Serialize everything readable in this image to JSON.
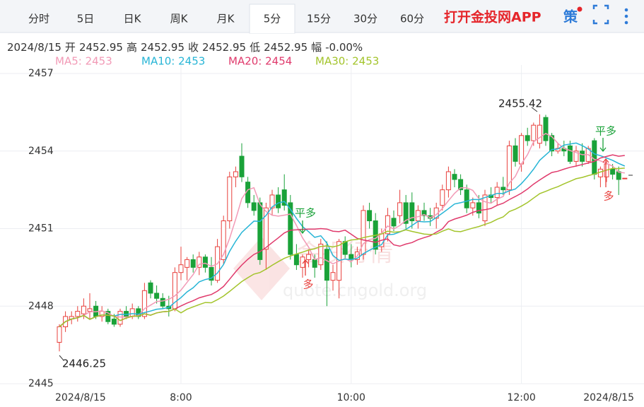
{
  "tabs": [
    "分时",
    "5日",
    "日K",
    "周K",
    "月K",
    "5分",
    "15分",
    "30分",
    "60分"
  ],
  "selected_tab": 5,
  "brand": "打开金投网APP",
  "strategy_icon": "策",
  "info": [
    "2024/8/15",
    "开",
    "2452.95",
    "高",
    "2452.95",
    "收",
    "2452.95",
    "低",
    "2452.95",
    "幅",
    "-0.00%"
  ],
  "watermark": [
    "金投行情",
    "quote.cngold.org"
  ],
  "chart_data": {
    "type": "candlestick",
    "categories": [
      "2024/8/15",
      null,
      null,
      null,
      null,
      null,
      null,
      null,
      null,
      null,
      null,
      null,
      null,
      null,
      null,
      null,
      null,
      null,
      null,
      null,
      "8:00",
      null,
      null,
      null,
      null,
      null,
      null,
      null,
      null,
      null,
      null,
      null,
      null,
      null,
      null,
      null,
      null,
      null,
      null,
      null,
      null,
      null,
      null,
      null,
      null,
      null,
      null,
      null,
      "10:00",
      null,
      null,
      null,
      null,
      null,
      null,
      null,
      null,
      null,
      null,
      null,
      null,
      null,
      null,
      null,
      null,
      null,
      null,
      null,
      null,
      null,
      null,
      null,
      null,
      null,
      null,
      null,
      "12:00",
      null,
      null,
      null,
      null,
      null,
      null,
      null,
      null,
      null,
      null,
      null,
      null,
      null,
      null,
      null,
      null,
      "2024/8/15"
    ],
    "ohlc": [
      [
        2446.6,
        2447.3,
        2446.25,
        2447.2
      ],
      [
        2447.2,
        2447.8,
        2447.0,
        2447.6
      ],
      [
        2447.5,
        2447.8,
        2447.3,
        2447.6
      ],
      [
        2447.6,
        2448.0,
        2447.4,
        2447.8
      ],
      [
        2447.7,
        2448.3,
        2447.5,
        2448.0
      ],
      [
        2447.8,
        2448.5,
        2447.5,
        2447.9
      ],
      [
        2448.0,
        2448.2,
        2447.5,
        2447.6
      ],
      [
        2447.6,
        2448.0,
        2447.4,
        2447.8
      ],
      [
        2447.8,
        2447.9,
        2447.3,
        2447.4
      ],
      [
        2447.5,
        2447.7,
        2447.2,
        2447.3
      ],
      [
        2447.3,
        2447.9,
        2447.2,
        2447.8
      ],
      [
        2447.8,
        2448.0,
        2447.5,
        2447.6
      ],
      [
        2447.6,
        2448.1,
        2447.5,
        2447.9
      ],
      [
        2447.9,
        2448.0,
        2447.5,
        2447.6
      ],
      [
        2447.6,
        2448.9,
        2447.5,
        2448.6
      ],
      [
        2448.9,
        2449.0,
        2448.3,
        2448.5
      ],
      [
        2448.5,
        2448.8,
        2448.1,
        2448.3
      ],
      [
        2448.3,
        2448.5,
        2447.9,
        2448.0
      ],
      [
        2448.0,
        2448.4,
        2447.6,
        2447.9
      ],
      [
        2447.9,
        2449.5,
        2447.8,
        2449.3
      ],
      [
        2449.3,
        2450.3,
        2449.0,
        2449.6
      ],
      [
        2449.5,
        2449.9,
        2449.0,
        2449.8
      ],
      [
        2449.8,
        2450.0,
        2449.3,
        2449.5
      ],
      [
        2449.5,
        2450.1,
        2449.2,
        2449.9
      ],
      [
        2449.9,
        2450.0,
        2449.3,
        2449.5
      ],
      [
        2449.5,
        2449.9,
        2448.8,
        2449.0
      ],
      [
        2449.0,
        2450.6,
        2448.9,
        2450.3
      ],
      [
        2449.8,
        2451.5,
        2449.6,
        2451.3
      ],
      [
        2451.3,
        2453.2,
        2451.0,
        2453.0
      ],
      [
        2453.0,
        2453.4,
        2452.6,
        2453.2
      ],
      [
        2453.8,
        2454.3,
        2452.8,
        2453.0
      ],
      [
        2452.8,
        2453.0,
        2451.8,
        2452.0
      ],
      [
        2452.0,
        2452.3,
        2451.5,
        2451.7
      ],
      [
        2452.0,
        2452.2,
        2449.6,
        2449.8
      ],
      [
        2450.2,
        2452.0,
        2449.4,
        2451.8
      ],
      [
        2451.8,
        2452.5,
        2451.5,
        2452.3
      ],
      [
        2452.3,
        2452.6,
        2451.6,
        2451.8
      ],
      [
        2452.5,
        2453.1,
        2451.7,
        2451.9
      ],
      [
        2452.0,
        2452.3,
        2449.8,
        2450.0
      ],
      [
        2450.0,
        2450.4,
        2449.4,
        2449.6
      ],
      [
        2449.5,
        2450.0,
        2449.1,
        2449.9
      ],
      [
        2449.8,
        2450.2,
        2449.5,
        2450.0
      ],
      [
        2449.8,
        2450.0,
        2449.1,
        2449.5
      ],
      [
        2449.6,
        2450.6,
        2449.4,
        2450.4
      ],
      [
        2450.2,
        2450.5,
        2448.0,
        2449.0
      ],
      [
        2449.0,
        2449.6,
        2448.6,
        2449.3
      ],
      [
        2449.0,
        2450.6,
        2448.3,
        2450.5
      ],
      [
        2450.5,
        2450.7,
        2449.8,
        2450.0
      ],
      [
        2450.0,
        2450.4,
        2449.5,
        2449.8
      ],
      [
        2449.8,
        2450.3,
        2449.6,
        2450.1
      ],
      [
        2450.0,
        2451.9,
        2449.8,
        2451.7
      ],
      [
        2451.7,
        2452.0,
        2451.0,
        2451.3
      ],
      [
        2451.3,
        2451.6,
        2450.0,
        2450.2
      ],
      [
        2450.3,
        2451.0,
        2450.1,
        2450.8
      ],
      [
        2450.8,
        2451.8,
        2450.5,
        2451.5
      ],
      [
        2451.4,
        2451.7,
        2450.9,
        2451.1
      ],
      [
        2451.5,
        2452.5,
        2451.2,
        2452.0
      ],
      [
        2452.0,
        2452.3,
        2451.0,
        2451.2
      ],
      [
        2452.0,
        2452.4,
        2451.0,
        2451.3
      ],
      [
        2451.3,
        2451.9,
        2451.0,
        2451.7
      ],
      [
        2451.7,
        2452.0,
        2451.3,
        2451.5
      ],
      [
        2451.5,
        2451.8,
        2451.1,
        2451.4
      ],
      [
        2451.4,
        2452.0,
        2451.0,
        2451.8
      ],
      [
        2451.9,
        2452.7,
        2451.7,
        2452.5
      ],
      [
        2452.5,
        2453.4,
        2452.2,
        2453.2
      ],
      [
        2453.1,
        2453.3,
        2452.6,
        2452.9
      ],
      [
        2452.9,
        2453.1,
        2452.3,
        2452.5
      ],
      [
        2452.5,
        2452.7,
        2451.6,
        2451.8
      ],
      [
        2451.8,
        2452.2,
        2451.5,
        2452.0
      ],
      [
        2452.0,
        2452.3,
        2451.4,
        2451.6
      ],
      [
        2451.3,
        2452.5,
        2451.1,
        2452.3
      ],
      [
        2452.3,
        2452.6,
        2452.0,
        2452.2
      ],
      [
        2452.2,
        2452.8,
        2451.9,
        2452.6
      ],
      [
        2452.6,
        2453.0,
        2452.3,
        2452.5
      ],
      [
        2452.5,
        2454.4,
        2452.3,
        2454.2
      ],
      [
        2454.2,
        2454.5,
        2453.4,
        2453.6
      ],
      [
        2453.5,
        2454.7,
        2453.2,
        2454.6
      ],
      [
        2454.6,
        2454.9,
        2454.2,
        2454.4
      ],
      [
        2454.4,
        2455.1,
        2454.2,
        2455.0
      ],
      [
        2454.3,
        2455.42,
        2454.1,
        2455.0
      ],
      [
        2455.3,
        2455.4,
        2454.2,
        2454.4
      ],
      [
        2454.6,
        2454.7,
        2453.8,
        2454.0
      ],
      [
        2454.0,
        2454.3,
        2453.9,
        2454.1
      ],
      [
        2454.1,
        2454.4,
        2453.8,
        2454.0
      ],
      [
        2454.2,
        2454.4,
        2453.5,
        2453.6
      ],
      [
        2453.6,
        2454.2,
        2453.4,
        2454.0
      ],
      [
        2454.0,
        2454.3,
        2453.4,
        2453.6
      ],
      [
        2453.6,
        2454.2,
        2453.5,
        2454.1
      ],
      [
        2454.4,
        2454.5,
        2452.9,
        2453.1
      ],
      [
        2453.0,
        2453.4,
        2452.6,
        2453.3
      ],
      [
        2453.0,
        2453.6,
        2452.8,
        2453.5
      ],
      [
        2453.3,
        2453.5,
        2452.9,
        2453.1
      ],
      [
        2453.2,
        2453.4,
        2452.3,
        2452.9
      ],
      [
        2452.95,
        2452.95,
        2452.95,
        2452.95
      ]
    ],
    "up_color": "#e8403c",
    "down_color": "#1aa239",
    "series": [
      {
        "name": "MA5: 2453",
        "color": "#f29ab6",
        "values": [
          2447.2,
          2447.4,
          2447.5,
          2447.55,
          2447.64,
          2447.78,
          2447.78,
          2447.82,
          2447.74,
          2447.6,
          2447.58,
          2447.58,
          2447.6,
          2447.64,
          2447.9,
          2448.04,
          2448.18,
          2448.2,
          2448.26,
          2448.4,
          2448.62,
          2448.92,
          2449.22,
          2449.62,
          2449.66,
          2449.54,
          2449.64,
          2450.0,
          2450.62,
          2451.36,
          2452.16,
          2452.5,
          2452.58,
          2451.94,
          2451.66,
          2451.52,
          2451.48,
          2451.52,
          2451.56,
          2451.12,
          2450.64,
          2450.28,
          2449.8,
          2449.88,
          2449.76,
          2449.64,
          2449.74,
          2449.84,
          2449.72,
          2449.94,
          2450.42,
          2450.58,
          2450.62,
          2450.82,
          2451.1,
          2450.98,
          2451.12,
          2451.32,
          2451.42,
          2451.46,
          2451.54,
          2451.42,
          2451.54,
          2451.78,
          2452.08,
          2452.36,
          2452.58,
          2452.58,
          2452.48,
          2452.16,
          2452.04,
          2451.98,
          2452.14,
          2452.24,
          2452.76,
          2453.02,
          2453.5,
          2453.86,
          2454.36,
          2454.52,
          2454.68,
          2454.56,
          2454.3,
          2454.1,
          2454.02,
          2453.94,
          2453.86,
          2453.86,
          2453.68,
          2453.62,
          2453.52,
          2453.42,
          2453.18,
          2453.15
        ]
      },
      {
        "name": "MA10: 2453",
        "color": "#27b5d6",
        "values": [
          2447.2,
          2447.4,
          2447.5,
          2447.55,
          2447.64,
          2447.49,
          2447.59,
          2447.66,
          2447.65,
          2447.62,
          2447.68,
          2447.68,
          2447.71,
          2447.69,
          2447.75,
          2447.81,
          2447.88,
          2447.9,
          2447.95,
          2448.15,
          2448.33,
          2448.55,
          2448.71,
          2448.94,
          2449.03,
          2449.08,
          2449.28,
          2449.61,
          2450.12,
          2450.51,
          2450.85,
          2451.07,
          2451.29,
          2451.28,
          2451.51,
          2451.84,
          2451.99,
          2452.05,
          2451.75,
          2451.39,
          2451.08,
          2450.88,
          2450.66,
          2450.72,
          2450.44,
          2449.96,
          2449.77,
          2449.82,
          2449.8,
          2449.85,
          2450.03,
          2450.16,
          2450.28,
          2450.38,
          2450.76,
          2450.78,
          2450.87,
          2450.97,
          2451.12,
          2451.28,
          2451.26,
          2451.27,
          2451.43,
          2451.6,
          2451.77,
          2451.95,
          2452.0,
          2452.06,
          2452.13,
          2452.12,
          2452.2,
          2452.28,
          2452.36,
          2452.36,
          2452.46,
          2452.53,
          2452.74,
          2453.0,
          2453.3,
          2453.64,
          2453.85,
          2454.06,
          2454.08,
          2454.23,
          2454.27,
          2454.31,
          2454.21,
          2454.08,
          2453.89,
          2453.82,
          2453.73,
          2453.64,
          2453.52,
          2453.42
        ]
      },
      {
        "name": "MA20: 2454",
        "color": "#e03a6c",
        "values": [
          2447.2,
          2447.4,
          2447.5,
          2447.55,
          2447.64,
          2447.49,
          2447.59,
          2447.66,
          2447.65,
          2447.62,
          2447.44,
          2447.54,
          2447.61,
          2447.62,
          2447.7,
          2447.65,
          2447.74,
          2447.78,
          2447.8,
          2447.89,
          2448.01,
          2448.12,
          2448.21,
          2448.32,
          2448.39,
          2448.45,
          2448.58,
          2448.76,
          2449.04,
          2449.33,
          2449.59,
          2449.81,
          2450.0,
          2450.11,
          2450.27,
          2450.46,
          2450.64,
          2450.83,
          2450.94,
          2450.95,
          2450.97,
          2450.98,
          2450.98,
          2451.0,
          2450.98,
          2450.9,
          2450.88,
          2450.94,
          2450.78,
          2450.62,
          2450.56,
          2450.52,
          2450.47,
          2450.55,
          2450.6,
          2450.37,
          2450.32,
          2450.4,
          2450.46,
          2450.57,
          2450.65,
          2450.72,
          2450.86,
          2450.99,
          2451.27,
          2451.37,
          2451.44,
          2451.52,
          2451.63,
          2451.7,
          2451.73,
          2451.78,
          2451.9,
          2451.98,
          2452.12,
          2452.24,
          2452.37,
          2452.53,
          2452.72,
          2452.88,
          2453.03,
          2453.17,
          2453.22,
          2453.3,
          2453.37,
          2453.42,
          2453.48,
          2453.54,
          2453.6,
          2453.73,
          2453.79,
          2453.85,
          2453.8,
          2453.83
        ]
      },
      {
        "name": "MA30: 2453",
        "color": "#a3c42b",
        "values": [
          2447.2,
          2447.4,
          2447.5,
          2447.55,
          2447.64,
          2447.49,
          2447.59,
          2447.66,
          2447.65,
          2447.62,
          2447.44,
          2447.54,
          2447.61,
          2447.62,
          2447.7,
          2447.65,
          2447.74,
          2447.78,
          2447.8,
          2447.89,
          2447.74,
          2447.88,
          2447.97,
          2448.06,
          2448.14,
          2448.13,
          2448.25,
          2448.39,
          2448.57,
          2448.76,
          2448.95,
          2449.1,
          2449.24,
          2449.3,
          2449.43,
          2449.58,
          2449.72,
          2449.85,
          2449.94,
          2450.02,
          2450.09,
          2450.17,
          2450.22,
          2450.31,
          2450.33,
          2450.29,
          2450.35,
          2450.49,
          2450.56,
          2450.58,
          2450.65,
          2450.7,
          2450.74,
          2450.79,
          2450.9,
          2450.86,
          2450.88,
          2450.95,
          2450.89,
          2450.84,
          2450.79,
          2450.77,
          2450.79,
          2450.9,
          2450.99,
          2450.9,
          2450.88,
          2450.95,
          2451.02,
          2451.08,
          2451.16,
          2451.24,
          2451.36,
          2451.45,
          2451.66,
          2451.75,
          2451.87,
          2452.01,
          2452.18,
          2452.35,
          2452.44,
          2452.54,
          2452.62,
          2452.73,
          2452.83,
          2452.93,
          2452.98,
          2453.05,
          2453.11,
          2453.19,
          2453.26,
          2453.33,
          2453.32,
          2453.34
        ]
      }
    ],
    "ylim": [
      2445,
      2457
    ],
    "yticks": [
      2445,
      2448,
      2451,
      2454,
      2457
    ],
    "grid": true,
    "annotations": [
      "2455.42",
      "2446.25"
    ],
    "signals": [
      "平多",
      "多",
      "平多",
      "多"
    ]
  }
}
